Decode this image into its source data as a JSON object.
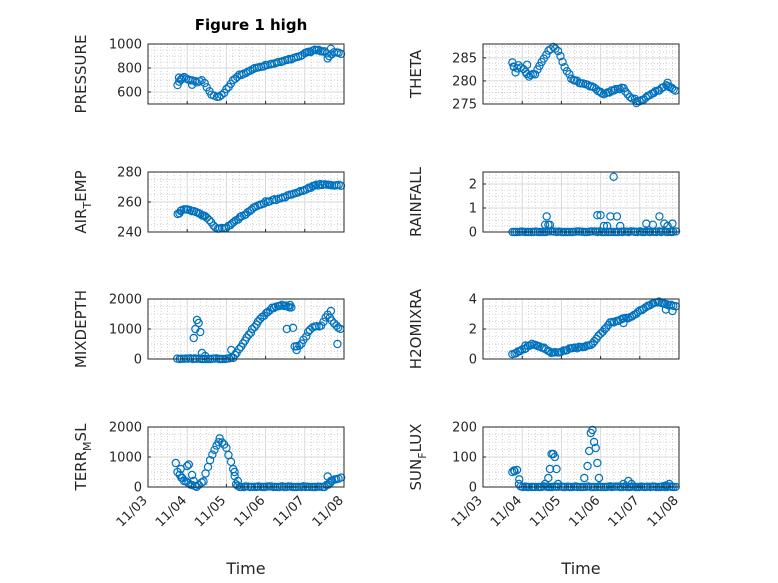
{
  "figure": {
    "title": "Figure 1 high",
    "marker_color": "#0072bd"
  },
  "chart_data": [
    {
      "type": "scatter",
      "ylabel": "PRESSURE",
      "ylim": [
        500,
        1000
      ],
      "yticks": [
        600,
        800,
        1000
      ],
      "ytick_labels": [
        "600",
        "800",
        "1000"
      ],
      "xlabel": "",
      "xlim": [
        "11/03",
        "11/08"
      ],
      "grid": true,
      "anchors": [
        [
          "11/03 18:00",
          660
        ],
        [
          "11/03 20:00",
          700
        ],
        [
          "11/03 22:00",
          720
        ],
        [
          "11/04 02:00",
          700
        ],
        [
          "11/04 06:00",
          680
        ],
        [
          "11/04 09:00",
          700
        ],
        [
          "11/04 12:00",
          640
        ],
        [
          "11/04 15:00",
          580
        ],
        [
          "11/04 18:00",
          560
        ],
        [
          "11/04 21:00",
          570
        ],
        [
          "11/05 00:00",
          620
        ],
        [
          "11/05 04:00",
          700
        ],
        [
          "11/05 08:00",
          740
        ],
        [
          "11/05 16:00",
          790
        ],
        [
          "11/06 00:00",
          820
        ],
        [
          "11/06 12:00",
          860
        ],
        [
          "11/06 20:00",
          890
        ],
        [
          "11/07 00:00",
          920
        ],
        [
          "11/07 06:00",
          950
        ],
        [
          "11/07 12:00",
          940
        ],
        [
          "11/07 15:00",
          900
        ],
        [
          "11/07 18:00",
          930
        ],
        [
          "11/07 22:00",
          920
        ]
      ],
      "extras": [
        [
          "11/03 19:00",
          720
        ],
        [
          "11/04 03:00",
          660
        ],
        [
          "11/07 14:00",
          880
        ],
        [
          "11/07 16:00",
          960
        ]
      ]
    },
    {
      "type": "scatter",
      "ylabel": "THETA",
      "ylim": [
        275,
        288
      ],
      "yticks": [
        275,
        280,
        285
      ],
      "ytick_labels": [
        "275",
        "280",
        "285"
      ],
      "xlabel": "",
      "xlim": [
        "11/03",
        "11/08"
      ],
      "grid": true,
      "anchors": [
        [
          "11/03 18:00",
          284
        ],
        [
          "11/03 20:00",
          282
        ],
        [
          "11/03 22:00",
          283.5
        ],
        [
          "11/04 02:00",
          282
        ],
        [
          "11/04 04:00",
          281
        ],
        [
          "11/04 08:00",
          281.5
        ],
        [
          "11/04 12:00",
          284
        ],
        [
          "11/04 16:00",
          286.5
        ],
        [
          "11/04 19:00",
          287.5
        ],
        [
          "11/04 22:00",
          286.5
        ],
        [
          "11/05 02:00",
          283
        ],
        [
          "11/05 06:00",
          280.5
        ],
        [
          "11/05 12:00",
          279.5
        ],
        [
          "11/05 20:00",
          278.5
        ],
        [
          "11/06 02:00",
          277
        ],
        [
          "11/06 08:00",
          278
        ],
        [
          "11/06 14:00",
          278.5
        ],
        [
          "11/06 18:00",
          276.5
        ],
        [
          "11/06 21:00",
          276
        ],
        [
          "11/07 00:00",
          275.5
        ],
        [
          "11/07 06:00",
          277
        ],
        [
          "11/07 12:00",
          278
        ],
        [
          "11/07 16:00",
          279
        ],
        [
          "11/07 22:00",
          278
        ]
      ],
      "extras": [
        [
          "11/03 19:00",
          283
        ],
        [
          "11/04 03:00",
          283.5
        ],
        [
          "11/06 22:00",
          275.2
        ],
        [
          "11/07 17:00",
          279.6
        ]
      ]
    },
    {
      "type": "scatter",
      "ylabel": "AIR_TEMP",
      "ylim": [
        240,
        280
      ],
      "yticks": [
        240,
        260,
        280
      ],
      "ytick_labels": [
        "240",
        "260",
        "280"
      ],
      "xlabel": "",
      "xlim": [
        "11/03",
        "11/08"
      ],
      "grid": true,
      "anchors": [
        [
          "11/03 18:00",
          252
        ],
        [
          "11/03 22:00",
          255
        ],
        [
          "11/04 04:00",
          254
        ],
        [
          "11/04 08:00",
          252
        ],
        [
          "11/04 12:00",
          250
        ],
        [
          "11/04 16:00",
          244
        ],
        [
          "11/04 20:00",
          242
        ],
        [
          "11/05 00:00",
          243
        ],
        [
          "11/05 06:00",
          248
        ],
        [
          "11/05 12:00",
          252
        ],
        [
          "11/05 18:00",
          257
        ],
        [
          "11/06 00:00",
          260
        ],
        [
          "11/06 08:00",
          262
        ],
        [
          "11/06 16:00",
          265
        ],
        [
          "11/07 00:00",
          268
        ],
        [
          "11/07 06:00",
          271
        ],
        [
          "11/07 12:00",
          272
        ],
        [
          "11/07 18:00",
          271
        ],
        [
          "11/07 22:00",
          271
        ]
      ],
      "extras": [
        [
          "11/03 20:00",
          254
        ],
        [
          "11/04 10:00",
          251
        ]
      ]
    },
    {
      "type": "scatter",
      "ylabel": "RAINFALL",
      "ylim": [
        0,
        2.5
      ],
      "yticks": [
        0,
        1,
        2
      ],
      "ytick_labels": [
        "0",
        "1",
        "2"
      ],
      "xlabel": "",
      "xlim": [
        "11/03",
        "11/08"
      ],
      "grid": true,
      "anchors": [
        [
          "11/03 18:00",
          0
        ],
        [
          "11/07 22:00",
          0
        ]
      ],
      "extras": [
        [
          "11/04 14:00",
          0.3
        ],
        [
          "11/04 15:00",
          0.65
        ],
        [
          "11/04 16:00",
          0.3
        ],
        [
          "11/04 17:00",
          0.3
        ],
        [
          "11/05 22:00",
          0.7
        ],
        [
          "11/06 00:00",
          0.7
        ],
        [
          "11/06 02:00",
          0.25
        ],
        [
          "11/06 04:00",
          0.25
        ],
        [
          "11/06 06:00",
          0.65
        ],
        [
          "11/06 08:00",
          2.3
        ],
        [
          "11/06 10:00",
          0.65
        ],
        [
          "11/06 12:00",
          0.25
        ],
        [
          "11/07 04:00",
          0.35
        ],
        [
          "11/07 08:00",
          0.3
        ],
        [
          "11/07 12:00",
          0.65
        ],
        [
          "11/07 15:00",
          0.35
        ],
        [
          "11/07 17:00",
          0.25
        ],
        [
          "11/07 20:00",
          0.35
        ]
      ]
    },
    {
      "type": "scatter",
      "ylabel": "MIXDEPTH",
      "ylim": [
        0,
        2000
      ],
      "yticks": [
        0,
        1000,
        2000
      ],
      "ytick_labels": [
        "0",
        "1000",
        "2000"
      ],
      "xlabel": "",
      "xlim": [
        "11/03",
        "11/08"
      ],
      "grid": true,
      "anchors": [
        [
          "11/03 18:00",
          0
        ],
        [
          "11/04 02:00",
          20
        ],
        [
          "11/04 06:00",
          0
        ],
        [
          "11/04 10:00",
          0
        ],
        [
          "11/04 14:00",
          0
        ],
        [
          "11/04 22:00",
          0
        ],
        [
          "11/05 04:00",
          50
        ],
        [
          "11/05 10:00",
          500
        ],
        [
          "11/05 16:00",
          1000
        ],
        [
          "11/05 22:00",
          1400
        ],
        [
          "11/06 04:00",
          1700
        ],
        [
          "11/06 10:00",
          1800
        ],
        [
          "11/06 16:00",
          1700
        ],
        [
          "11/06 18:00",
          400
        ],
        [
          "11/06 22:00",
          500
        ],
        [
          "11/07 02:00",
          900
        ],
        [
          "11/07 06:00",
          1100
        ],
        [
          "11/07 10:00",
          1100
        ],
        [
          "11/07 14:00",
          1500
        ],
        [
          "11/07 18:00",
          1200
        ],
        [
          "11/07 22:00",
          1000
        ]
      ],
      "extras": [
        [
          "11/04 04:00",
          700
        ],
        [
          "11/04 05:00",
          1000
        ],
        [
          "11/04 06:00",
          1300
        ],
        [
          "11/04 07:00",
          1200
        ],
        [
          "11/04 08:00",
          900
        ],
        [
          "11/04 09:00",
          200
        ],
        [
          "11/04 11:00",
          100
        ],
        [
          "11/05 03:00",
          300
        ],
        [
          "11/06 13:00",
          1000
        ],
        [
          "11/06 15:00",
          1800
        ],
        [
          "11/06 19:00",
          300
        ],
        [
          "11/07 20:00",
          500
        ],
        [
          "11/07 16:00",
          1600
        ]
      ]
    },
    {
      "type": "scatter",
      "ylabel": "H2OMIXRA",
      "ylim": [
        0,
        4
      ],
      "yticks": [
        0,
        2,
        4
      ],
      "ytick_labels": [
        "0",
        "2",
        "4"
      ],
      "xlabel": "",
      "xlim": [
        "11/03",
        "11/08"
      ],
      "grid": true,
      "anchors": [
        [
          "11/03 18:00",
          0.3
        ],
        [
          "11/04 00:00",
          0.6
        ],
        [
          "11/04 06:00",
          1
        ],
        [
          "11/04 12:00",
          0.8
        ],
        [
          "11/04 18:00",
          0.4
        ],
        [
          "11/05 00:00",
          0.5
        ],
        [
          "11/05 06:00",
          0.7
        ],
        [
          "11/05 12:00",
          0.8
        ],
        [
          "11/05 18:00",
          0.9
        ],
        [
          "11/06 00:00",
          1.7
        ],
        [
          "11/06 06:00",
          2.4
        ],
        [
          "11/06 12:00",
          2.6
        ],
        [
          "11/06 18:00",
          2.8
        ],
        [
          "11/07 00:00",
          3.2
        ],
        [
          "11/07 06:00",
          3.6
        ],
        [
          "11/07 12:00",
          3.8
        ],
        [
          "11/07 18:00",
          3.6
        ],
        [
          "11/07 22:00",
          3.5
        ]
      ],
      "extras": [
        [
          "11/04 02:00",
          0.9
        ],
        [
          "11/06 14:00",
          2.4
        ],
        [
          "11/07 16:00",
          3.3
        ],
        [
          "11/07 20:00",
          3.2
        ]
      ]
    },
    {
      "type": "scatter",
      "ylabel": "TERR_MSL",
      "ylim": [
        0,
        2000
      ],
      "yticks": [
        0,
        1000,
        2000
      ],
      "ytick_labels": [
        "0",
        "1000",
        "2000"
      ],
      "xlabel": "Time",
      "xlim": [
        "11/03",
        "11/08"
      ],
      "grid": true,
      "xticks": [
        "11/03",
        "11/04",
        "11/05",
        "11/06",
        "11/07",
        "11/08"
      ],
      "anchors": [
        [
          "11/03 18:00",
          500
        ],
        [
          "11/03 22:00",
          200
        ],
        [
          "11/04 02:00",
          100
        ],
        [
          "11/04 06:00",
          0
        ],
        [
          "11/04 10:00",
          200
        ],
        [
          "11/04 14:00",
          900
        ],
        [
          "11/04 18:00",
          1400
        ],
        [
          "11/04 20:00",
          1600
        ],
        [
          "11/05 00:00",
          1300
        ],
        [
          "11/05 04:00",
          600
        ],
        [
          "11/05 06:00",
          100
        ],
        [
          "11/05 08:00",
          0
        ],
        [
          "11/07 12:00",
          0
        ],
        [
          "11/07 18:00",
          250
        ],
        [
          "11/07 22:00",
          300
        ]
      ],
      "extras": [
        [
          "11/03 17:00",
          800
        ],
        [
          "11/03 20:00",
          600
        ],
        [
          "11/03 21:00",
          300
        ],
        [
          "11/04 00:00",
          700
        ],
        [
          "11/04 01:00",
          750
        ],
        [
          "11/04 03:00",
          400
        ],
        [
          "11/04 04:00",
          200
        ],
        [
          "11/05 05:00",
          500
        ],
        [
          "11/05 07:00",
          200
        ],
        [
          "11/07 14:00",
          350
        ],
        [
          "11/07 16:00",
          200
        ]
      ]
    },
    {
      "type": "scatter",
      "ylabel": "SUN_FLUX",
      "ylim": [
        0,
        200
      ],
      "yticks": [
        0,
        100,
        200
      ],
      "ytick_labels": [
        "0",
        "100",
        "200"
      ],
      "xlabel": "Time",
      "xlim": [
        "11/03",
        "11/08"
      ],
      "grid": true,
      "xticks": [
        "11/03",
        "11/04",
        "11/05",
        "11/06",
        "11/07",
        "11/08"
      ],
      "anchors": [
        [
          "11/03 18:00",
          50
        ],
        [
          "11/03 21:00",
          55
        ],
        [
          "11/03 23:00",
          0
        ],
        [
          "11/07 22:00",
          0
        ]
      ],
      "extras": [
        [
          "11/03 19:00",
          55
        ],
        [
          "11/03 22:00",
          10
        ],
        [
          "11/04 14:00",
          10
        ],
        [
          "11/04 16:00",
          30
        ],
        [
          "11/04 17:00",
          60
        ],
        [
          "11/04 18:00",
          110
        ],
        [
          "11/04 19:00",
          110
        ],
        [
          "11/04 20:00",
          100
        ],
        [
          "11/04 21:00",
          60
        ],
        [
          "11/04 22:00",
          10
        ],
        [
          "11/05 14:00",
          30
        ],
        [
          "11/05 16:00",
          70
        ],
        [
          "11/05 17:00",
          120
        ],
        [
          "11/05 18:00",
          180
        ],
        [
          "11/05 19:00",
          190
        ],
        [
          "11/05 20:00",
          150
        ],
        [
          "11/05 21:00",
          130
        ],
        [
          "11/05 22:00",
          80
        ],
        [
          "11/05 23:00",
          30
        ],
        [
          "11/06 14:00",
          10
        ],
        [
          "11/06 17:00",
          20
        ],
        [
          "11/06 19:00",
          10
        ],
        [
          "11/07 16:00",
          5
        ],
        [
          "11/07 18:00",
          10
        ]
      ]
    }
  ]
}
